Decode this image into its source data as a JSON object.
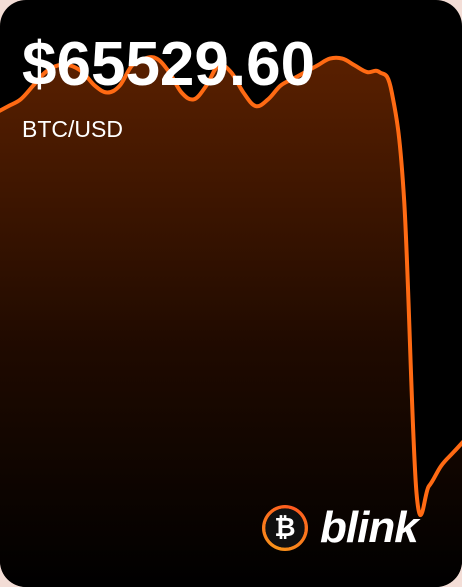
{
  "widget": {
    "price": "$65529.60",
    "pair": "BTC/USD",
    "brand": "blink",
    "coin_symbol": "₿"
  },
  "colors": {
    "line": "#ff6a13",
    "fill_top": "#5a2000",
    "fill_bottom": "#000000",
    "background": "#000000"
  },
  "chart_data": {
    "type": "area",
    "values": [
      60,
      61,
      62,
      64,
      66,
      67,
      67,
      66,
      64,
      63,
      64,
      67,
      68,
      68,
      66,
      63,
      62,
      64,
      67,
      66,
      63,
      61,
      62,
      64,
      65,
      66,
      67,
      68,
      68,
      67,
      66,
      66,
      63,
      47,
      4,
      5,
      8,
      10,
      12
    ]
  }
}
